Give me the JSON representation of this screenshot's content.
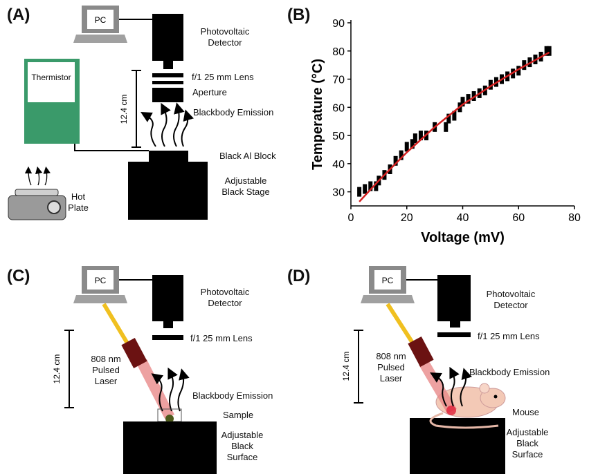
{
  "panel_a": {
    "label": "(A)",
    "pc": "PC",
    "detector": "Photovoltaic Detector",
    "lens": "f/1 25 mm Lens",
    "aperture": "Aperture",
    "emission": "Blackbody Emission",
    "block": "Black Al Block",
    "stage": "Adjustable Black Stage",
    "thermistor": "Thermistor",
    "hot_plate": "Hot Plate",
    "distance": "12.4 cm"
  },
  "chart_data": {
    "type": "scatter",
    "label": "(B)",
    "x_label": "Voltage (mV)",
    "y_label": "Temperature (°C)",
    "xlim": [
      0,
      80
    ],
    "xticks": [
      0,
      20,
      40,
      60,
      80
    ],
    "ylim": [
      25,
      90
    ],
    "yticks": [
      30,
      40,
      50,
      60,
      70,
      80,
      90
    ],
    "series": [
      {
        "color": "#000000",
        "x": [
          3,
          5,
          7,
          9,
          10,
          12,
          14,
          16,
          18,
          20,
          22,
          23,
          25,
          27,
          30,
          34,
          35,
          37,
          39,
          40,
          42,
          44,
          46,
          48,
          50,
          52,
          54,
          56,
          58,
          60,
          62,
          64,
          66,
          68,
          70,
          71
        ],
        "values": [
          30,
          31,
          32,
          32,
          34,
          36,
          38,
          41,
          43,
          46,
          47,
          49,
          50,
          50,
          53,
          53,
          56,
          57,
          60,
          62,
          63,
          64,
          65,
          66,
          68,
          69,
          70,
          71,
          72,
          73,
          75,
          76,
          77,
          78,
          80,
          80
        ]
      },
      {
        "type": "line",
        "color": "#d42020",
        "x": [
          3,
          10,
          20,
          30,
          40,
          50,
          60,
          71
        ],
        "values": [
          26.5,
          34,
          44,
          53,
          61,
          67.5,
          73.5,
          79.5
        ]
      }
    ]
  },
  "panel_c": {
    "label": "(C)",
    "pc": "PC",
    "detector": "Photovoltaic Detector",
    "lens": "f/1 25 mm Lens",
    "laser": "808 nm Pulsed Laser",
    "emission": "Blackbody Emission",
    "sample": "Sample",
    "surface": "Adjustable Black Surface",
    "distance": "12.4 cm"
  },
  "panel_d": {
    "label": "(D)",
    "pc": "PC",
    "detector": "Photovoltaic Detector",
    "lens": "f/1 25 mm Lens",
    "laser": "808 nm Pulsed Laser",
    "emission": "Blackbody Emission",
    "mouse": "Mouse",
    "surface": "Adjustable Black Surface",
    "distance": "12.4 cm"
  }
}
